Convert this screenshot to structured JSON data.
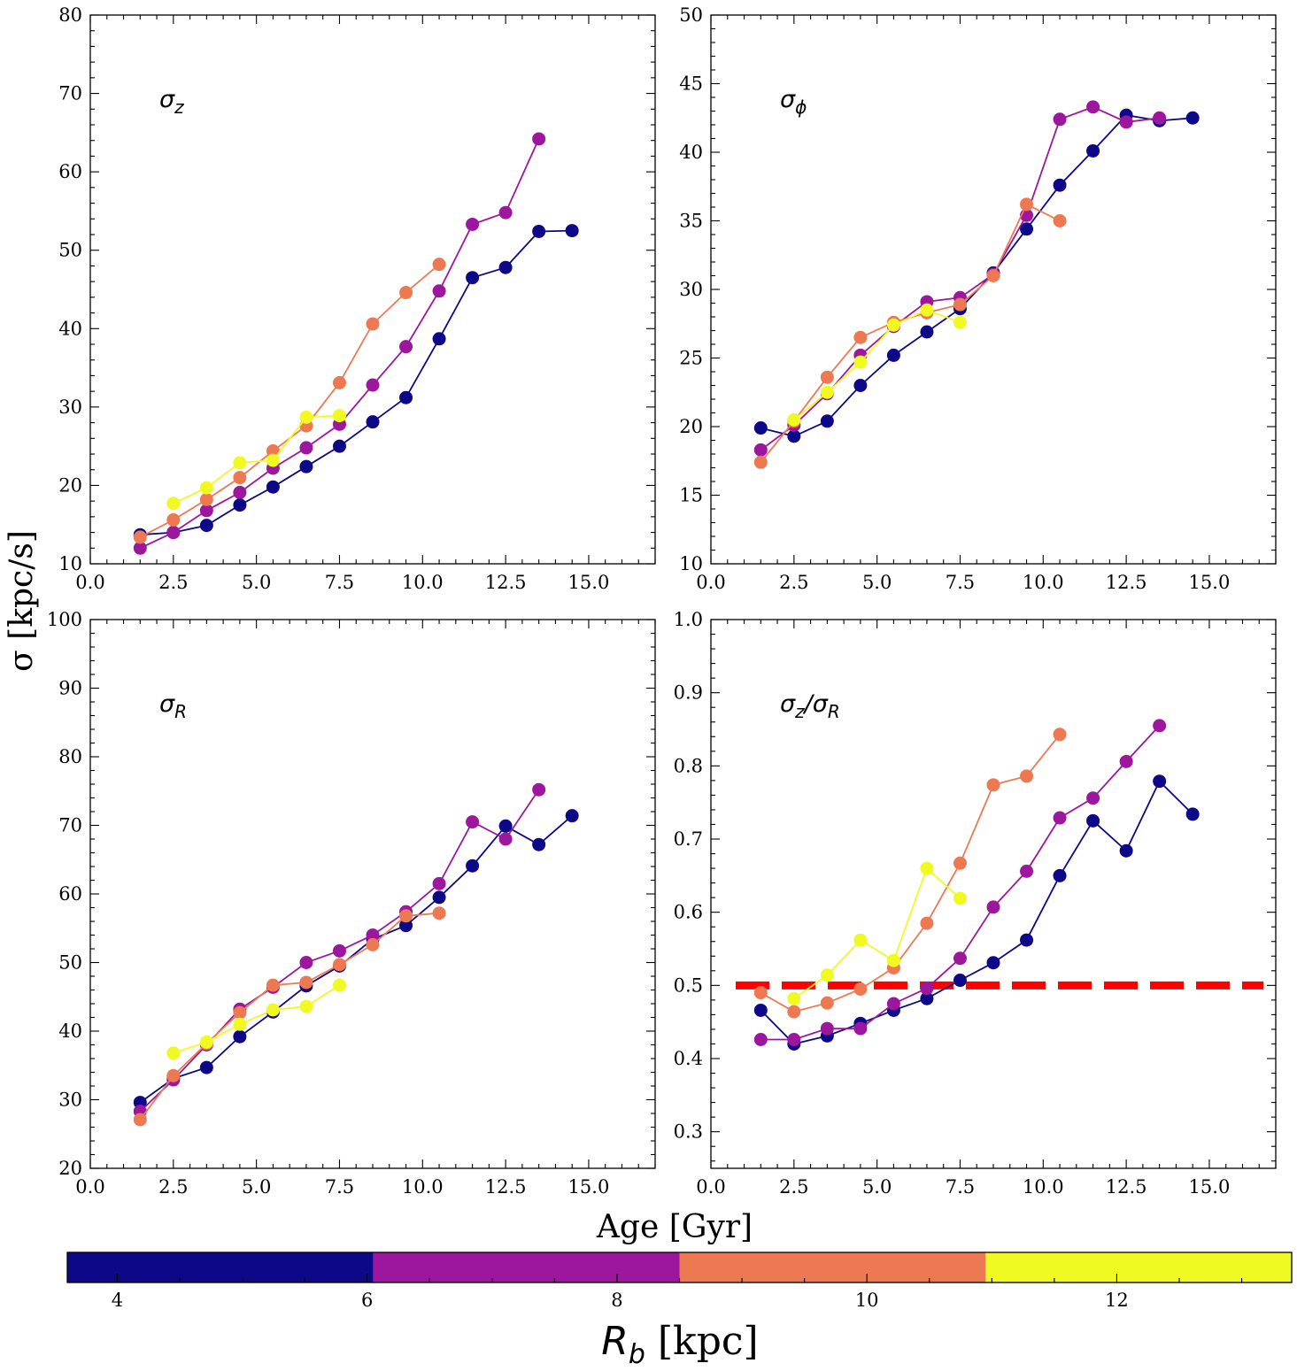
{
  "figure": {
    "shared_ylabel": "σ [kpc/s]",
    "shared_xlabel": "Age [Gyr]"
  },
  "colorbar": {
    "label_main": "R",
    "label_sub": "b",
    "label_unit": " [kpc]",
    "range": [
      3.6,
      13.4
    ],
    "ticks": [
      4,
      6,
      8,
      10,
      12
    ],
    "segments": [
      {
        "from": 3.6,
        "to": 6.05,
        "color": "#0d0887"
      },
      {
        "from": 6.05,
        "to": 8.5,
        "color": "#9c179e"
      },
      {
        "from": 8.5,
        "to": 10.95,
        "color": "#ed7953"
      },
      {
        "from": 10.95,
        "to": 13.4,
        "color": "#f0f921"
      }
    ]
  },
  "chart_data": [
    {
      "type": "line",
      "panel": "top-left",
      "label_main": "σ",
      "label_sub": "z",
      "xlim": [
        0,
        17
      ],
      "ylim": [
        10,
        80
      ],
      "xticks": [
        "0.0",
        "2.5",
        "5.0",
        "7.5",
        "10.0",
        "12.5",
        "15.0"
      ],
      "xtick_values": [
        0,
        2.5,
        5,
        7.5,
        10,
        12.5,
        15
      ],
      "yticks": [
        10,
        20,
        30,
        40,
        50,
        60,
        70,
        80
      ],
      "series": [
        {
          "color": "#0d0887",
          "x": [
            1.5,
            2.5,
            3.5,
            4.5,
            5.5,
            6.5,
            7.5,
            8.5,
            9.5,
            10.5,
            11.5,
            12.5,
            13.5,
            14.5
          ],
          "y": [
            13.7,
            14.0,
            14.9,
            17.5,
            19.8,
            22.4,
            25.0,
            28.1,
            31.2,
            38.7,
            46.5,
            47.8,
            52.4,
            52.5
          ]
        },
        {
          "color": "#9c179e",
          "x": [
            1.5,
            2.5,
            3.5,
            4.5,
            5.5,
            6.5,
            7.5,
            8.5,
            9.5,
            10.5,
            11.5,
            12.5,
            13.5
          ],
          "y": [
            12.0,
            14.0,
            16.8,
            19.1,
            22.2,
            24.8,
            27.8,
            32.8,
            37.7,
            44.8,
            53.3,
            54.8,
            64.2
          ]
        },
        {
          "color": "#ed7953",
          "x": [
            1.5,
            2.5,
            3.5,
            4.5,
            5.5,
            6.5,
            7.5,
            8.5,
            9.5,
            10.5
          ],
          "y": [
            13.4,
            15.6,
            18.2,
            21.0,
            24.4,
            27.6,
            33.1,
            40.6,
            44.6,
            48.2
          ]
        },
        {
          "color": "#f0f921",
          "x": [
            2.5,
            3.5,
            4.5,
            5.5,
            6.5,
            7.5
          ],
          "y": [
            17.7,
            19.7,
            22.9,
            23.2,
            28.7,
            28.9
          ]
        }
      ]
    },
    {
      "type": "line",
      "panel": "top-right",
      "label_main": "σ",
      "label_sub": "ϕ",
      "xlim": [
        0,
        17
      ],
      "ylim": [
        10,
        50
      ],
      "xticks": [
        "0.0",
        "2.5",
        "5.0",
        "7.5",
        "10.0",
        "12.5",
        "15.0"
      ],
      "xtick_values": [
        0,
        2.5,
        5,
        7.5,
        10,
        12.5,
        15
      ],
      "yticks": [
        10,
        15,
        20,
        25,
        30,
        35,
        40,
        45,
        50
      ],
      "series": [
        {
          "color": "#0d0887",
          "x": [
            1.5,
            2.5,
            3.5,
            4.5,
            5.5,
            6.5,
            7.5,
            8.5,
            9.5,
            10.5,
            11.5,
            12.5,
            13.5,
            14.5
          ],
          "y": [
            19.9,
            19.3,
            20.4,
            23.0,
            25.2,
            26.9,
            28.6,
            31.2,
            34.4,
            37.6,
            40.1,
            42.7,
            42.3,
            42.5
          ]
        },
        {
          "color": "#9c179e",
          "x": [
            1.5,
            2.5,
            3.5,
            4.5,
            5.5,
            6.5,
            7.5,
            8.5,
            9.5,
            10.5,
            11.5,
            12.5,
            13.5
          ],
          "y": [
            18.3,
            20.1,
            22.4,
            25.2,
            27.3,
            29.1,
            29.4,
            31.1,
            35.4,
            42.4,
            43.3,
            42.2,
            42.5
          ]
        },
        {
          "color": "#ed7953",
          "x": [
            1.5,
            2.5,
            3.5,
            4.5,
            5.5,
            6.5,
            7.5,
            8.5,
            9.5,
            10.5
          ],
          "y": [
            17.4,
            20.4,
            23.6,
            26.5,
            27.6,
            28.3,
            28.9,
            31.0,
            36.2,
            35.0
          ]
        },
        {
          "color": "#f0f921",
          "x": [
            2.5,
            3.5,
            4.5,
            5.5,
            6.5,
            7.5
          ],
          "y": [
            20.5,
            22.5,
            24.7,
            27.4,
            28.5,
            27.6
          ]
        }
      ]
    },
    {
      "type": "line",
      "panel": "bottom-left",
      "label_main": "σ",
      "label_sub": "R",
      "xlim": [
        0,
        17
      ],
      "ylim": [
        20,
        100
      ],
      "xticks": [
        "0.0",
        "2.5",
        "5.0",
        "7.5",
        "10.0",
        "12.5",
        "15.0"
      ],
      "xtick_values": [
        0,
        2.5,
        5,
        7.5,
        10,
        12.5,
        15
      ],
      "yticks": [
        20,
        30,
        40,
        50,
        60,
        70,
        80,
        90,
        100
      ],
      "series": [
        {
          "color": "#0d0887",
          "x": [
            1.5,
            2.5,
            3.5,
            4.5,
            5.5,
            6.5,
            7.5,
            8.5,
            9.5,
            10.5,
            11.5,
            12.5,
            13.5,
            14.5
          ],
          "y": [
            29.6,
            33.1,
            34.7,
            39.2,
            42.8,
            46.6,
            49.5,
            53.4,
            55.4,
            59.5,
            64.1,
            69.9,
            67.2,
            71.4
          ]
        },
        {
          "color": "#9c179e",
          "x": [
            1.5,
            2.5,
            3.5,
            4.5,
            5.5,
            6.5,
            7.5,
            8.5,
            9.5,
            10.5,
            11.5,
            12.5,
            13.5
          ],
          "y": [
            28.3,
            32.9,
            38.0,
            43.2,
            46.4,
            50.0,
            51.7,
            54.0,
            57.4,
            61.5,
            70.5,
            68.0,
            75.2
          ]
        },
        {
          "color": "#ed7953",
          "x": [
            1.5,
            2.5,
            3.5,
            4.5,
            5.5,
            6.5,
            7.5,
            8.5,
            9.5,
            10.5
          ],
          "y": [
            27.1,
            33.5,
            38.2,
            42.7,
            46.7,
            47.1,
            49.7,
            52.6,
            56.8,
            57.2
          ]
        },
        {
          "color": "#f0f921",
          "x": [
            2.5,
            3.5,
            4.5,
            5.5,
            6.5,
            7.5
          ],
          "y": [
            36.8,
            38.4,
            41.0,
            43.1,
            43.6,
            46.7
          ]
        }
      ]
    },
    {
      "type": "line",
      "panel": "bottom-right",
      "label_main": "σ",
      "label_sub": "z",
      "label_slash": "/",
      "label_main2": "σ",
      "label_sub2": "R",
      "xlim": [
        0,
        17
      ],
      "ylim": [
        0.25,
        1.0
      ],
      "xticks": [
        "0.0",
        "2.5",
        "5.0",
        "7.5",
        "10.0",
        "12.5",
        "15.0"
      ],
      "xtick_values": [
        0,
        2.5,
        5,
        7.5,
        10,
        12.5,
        15
      ],
      "yticks": [
        "0.3",
        "0.4",
        "0.5",
        "0.6",
        "0.7",
        "0.8",
        "0.9",
        "1.0"
      ],
      "ytick_values": [
        0.3,
        0.4,
        0.5,
        0.6,
        0.7,
        0.8,
        0.9,
        1.0
      ],
      "hline": {
        "y": 0.5,
        "color": "#ff0000",
        "style": "dashed"
      },
      "series": [
        {
          "color": "#0d0887",
          "x": [
            1.5,
            2.5,
            3.5,
            4.5,
            5.5,
            6.5,
            7.5,
            8.5,
            9.5,
            10.5,
            11.5,
            12.5,
            13.5,
            14.5
          ],
          "y": [
            0.466,
            0.42,
            0.431,
            0.448,
            0.466,
            0.482,
            0.507,
            0.531,
            0.562,
            0.65,
            0.725,
            0.684,
            0.779,
            0.734
          ]
        },
        {
          "color": "#9c179e",
          "x": [
            1.5,
            2.5,
            3.5,
            4.5,
            5.5,
            6.5,
            7.5,
            8.5,
            9.5,
            10.5,
            11.5,
            12.5,
            13.5
          ],
          "y": [
            0.426,
            0.426,
            0.441,
            0.441,
            0.475,
            0.496,
            0.537,
            0.607,
            0.656,
            0.729,
            0.756,
            0.806,
            0.855
          ]
        },
        {
          "color": "#ed7953",
          "x": [
            1.5,
            2.5,
            3.5,
            4.5,
            5.5,
            6.5,
            7.5,
            8.5,
            9.5,
            10.5
          ],
          "y": [
            0.49,
            0.464,
            0.476,
            0.495,
            0.524,
            0.585,
            0.667,
            0.774,
            0.786,
            0.843
          ]
        },
        {
          "color": "#f0f921",
          "x": [
            2.5,
            3.5,
            4.5,
            5.5,
            6.5,
            7.5
          ],
          "y": [
            0.482,
            0.514,
            0.562,
            0.534,
            0.66,
            0.619
          ]
        }
      ]
    }
  ]
}
